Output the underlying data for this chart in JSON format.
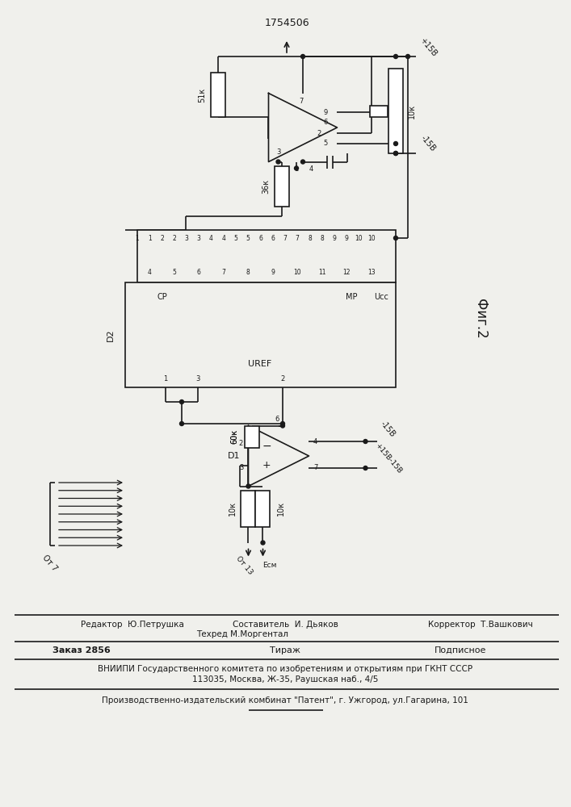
{
  "title": "1754506",
  "fig_label": "Фиг.2",
  "bg_color": "#f0f0ec",
  "line_color": "#1a1a1a",
  "footer": {
    "editor": "Редактор  Ю.Петрушка",
    "composer": "Составитель  И. Дьяков",
    "tech": "Техред М.Моргентал",
    "corrector": "Корректор  Т.Вашкович",
    "order": "Заказ 2856",
    "tirazh": "Тираж",
    "podpisnoe": "Подписное",
    "vnipi": "ВНИИПИ Государственного комитета по изобретениям и открытиям при ГКНТ СССР",
    "address": "113035, Москва, Ж-35, Раушская наб., 4/5",
    "patent": "Производственно-издательский комбинат \"Патент\", г. Ужгород, ул.Гагарина, 101"
  }
}
